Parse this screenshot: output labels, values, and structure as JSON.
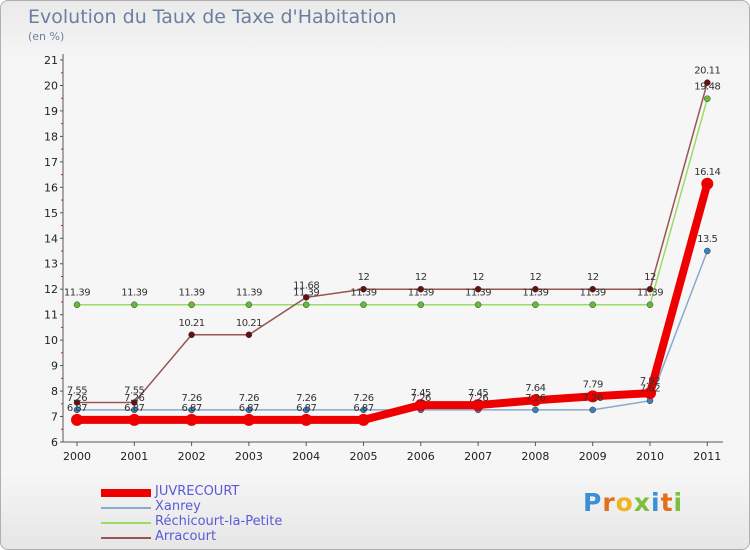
{
  "header": {
    "title": "Evolution du Taux de Taxe d'Habitation",
    "unit": "(en %)"
  },
  "logo": {
    "letters": [
      "P",
      "r",
      "o",
      "x",
      "i",
      "t",
      "i"
    ],
    "colors": [
      "#3a8fd6",
      "#e36f1e",
      "#f1b21b",
      "#7bbf3a",
      "#3a8fd6",
      "#e36f1e",
      "#7bbf3a"
    ]
  },
  "chart_data": {
    "type": "line",
    "title": "Evolution du Taux de Taxe d'Habitation",
    "ylabel": "(en %)",
    "xlabel": "",
    "ylim": [
      6,
      21
    ],
    "grid": false,
    "x": [
      "2000",
      "2001",
      "2002",
      "2003",
      "2004",
      "2005",
      "2006",
      "2007",
      "2008",
      "2009",
      "2010",
      "2011"
    ],
    "yticks": [
      "6",
      "7",
      "8",
      "9",
      "10",
      "11",
      "12",
      "13",
      "14",
      "15",
      "16",
      "17",
      "18",
      "19",
      "20",
      "21"
    ],
    "series": [
      {
        "name": "Réchicourt-la-Petite",
        "color": "#99dd66",
        "marker": "#66bb33",
        "values": [
          11.39,
          11.39,
          11.39,
          11.39,
          11.39,
          11.39,
          11.39,
          11.39,
          11.39,
          11.39,
          11.39,
          19.48
        ],
        "labels": [
          "11.39",
          "11.39",
          "11.39",
          "11.39",
          "11.39",
          "11.39",
          "11.39",
          "11.39",
          "11.39",
          "11.39",
          "11.39",
          "19.48"
        ]
      },
      {
        "name": "Xanrey",
        "color": "#88aacc",
        "marker": "#3b7fc0",
        "values": [
          7.26,
          7.26,
          7.26,
          7.26,
          7.26,
          7.26,
          7.26,
          7.26,
          7.26,
          7.26,
          7.62,
          13.5
        ],
        "labels": [
          "7.26",
          "7.26",
          "7.26",
          "7.26",
          "7.26",
          "7.26",
          "7.26",
          "7.26",
          "7.26",
          "7.26",
          "7.62",
          "13.5"
        ]
      },
      {
        "name": "Arracourt",
        "color": "#995555",
        "marker": "#661111",
        "values": [
          7.55,
          7.55,
          10.21,
          10.21,
          11.68,
          12,
          12,
          12,
          12,
          12,
          12,
          20.11
        ],
        "labels": [
          "7.55",
          "7.55",
          "10.21",
          "10.21",
          "11.68",
          "12",
          "12",
          "12",
          "12",
          "12",
          "12",
          "20.11"
        ]
      },
      {
        "name": "JUVRECOURT",
        "color": "#ee0000",
        "marker": "#ee0000",
        "values": [
          6.87,
          6.87,
          6.87,
          6.87,
          6.87,
          6.87,
          7.45,
          7.45,
          7.64,
          7.79,
          7.92,
          16.14
        ],
        "labels": [
          "6.87",
          "6.87",
          "6.87",
          "6.87",
          "6.87",
          "6.87",
          "7.45",
          "7.45",
          "7.64",
          "7.79",
          "7.92",
          "16.14"
        ]
      }
    ],
    "legend": {
      "position": "bottom-left",
      "order": [
        "JUVRECOURT",
        "Xanrey",
        "Réchicourt-la-Petite",
        "Arracourt"
      ]
    }
  }
}
